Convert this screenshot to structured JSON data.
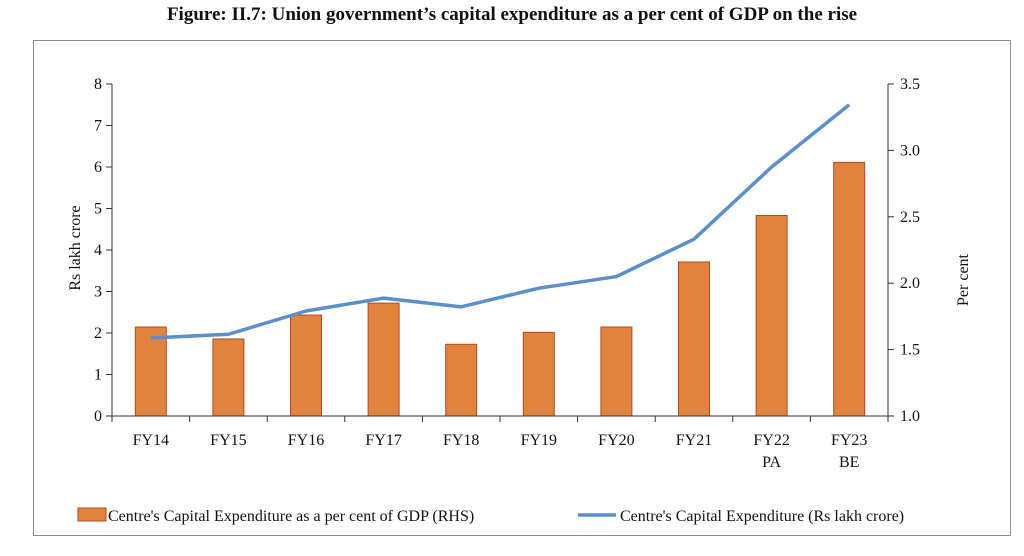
{
  "figure_title": "Figure: II.7: Union government’s capital expenditure as a per cent of GDP on the rise",
  "colors": {
    "bar_fill": "#E0833F",
    "bar_stroke": "#B34A1F",
    "line": "#5B8ECC",
    "axis": "#333333"
  },
  "chart_data": {
    "type": "bar+line",
    "categories": [
      [
        "FY14"
      ],
      [
        "FY15"
      ],
      [
        "FY16"
      ],
      [
        "FY17"
      ],
      [
        "FY18"
      ],
      [
        "FY19"
      ],
      [
        "FY20"
      ],
      [
        "FY21"
      ],
      [
        "FY22",
        "PA"
      ],
      [
        "FY23",
        "BE"
      ]
    ],
    "bar_series": {
      "name": "Centre's Capital Expenditure as a per cent of GDP (RHS)",
      "axis": "right",
      "values": [
        1.67,
        1.58,
        1.76,
        1.85,
        1.54,
        1.63,
        1.67,
        2.16,
        2.51,
        2.91
      ]
    },
    "line_series": {
      "name": "Centre's Capital Expenditure (Rs lakh crore)",
      "axis": "left",
      "values": [
        1.88,
        1.97,
        2.53,
        2.84,
        2.63,
        3.08,
        3.36,
        4.26,
        6.0,
        7.5
      ]
    },
    "y_left": {
      "label": "Rs lakh crore",
      "min": 0,
      "max": 8,
      "ticks": [
        "0",
        "1",
        "2",
        "3",
        "4",
        "5",
        "6",
        "7",
        "8"
      ]
    },
    "y_right": {
      "label": "Per cent",
      "min": 1.0,
      "max": 3.5,
      "ticks": [
        "1.0",
        "1.5",
        "2.0",
        "2.5",
        "3.0",
        "3.5"
      ]
    },
    "legend_position": "bottom",
    "grid": false
  }
}
